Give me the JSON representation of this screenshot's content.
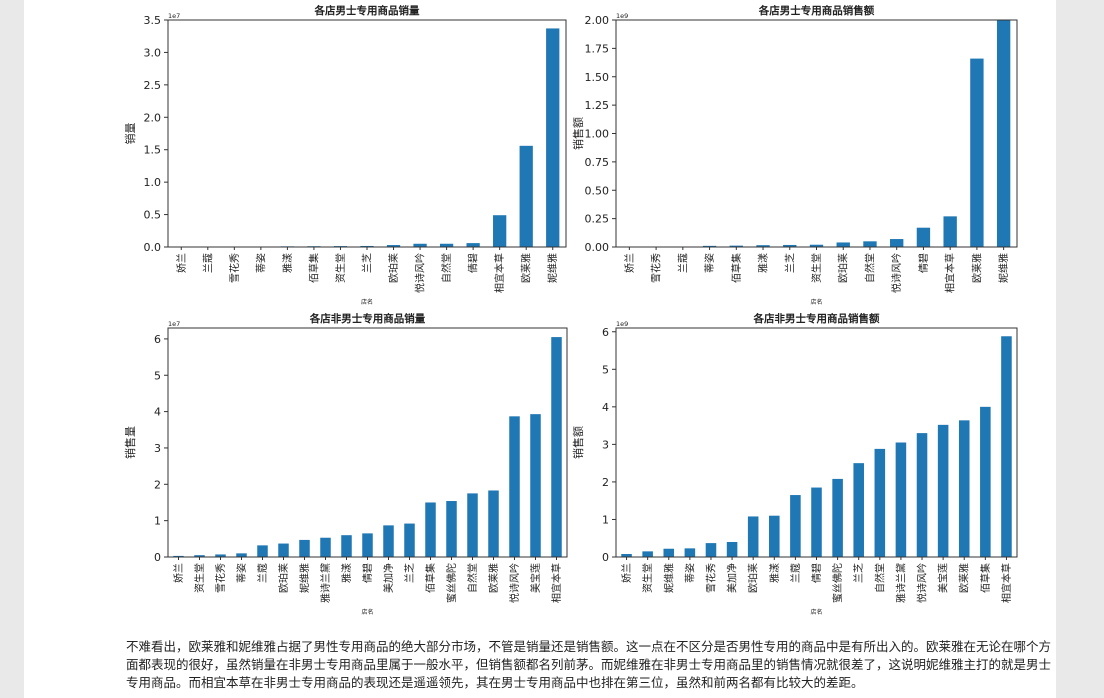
{
  "charts": [
    {
      "type": "bar",
      "title": "各店男士专用商品销量",
      "ylabel": "销量",
      "xlabel": "店名",
      "offset_text": "1e7",
      "ylim": [
        0,
        3.5
      ],
      "yticks": [
        "0.0",
        "0.5",
        "1.0",
        "1.5",
        "2.0",
        "2.5",
        "3.0",
        "3.5"
      ],
      "categories": [
        "娇兰",
        "兰蔻",
        "雪花秀",
        "蒂姿",
        "雅漾",
        "佰草集",
        "资生堂",
        "兰芝",
        "欧珀莱",
        "悦诗风吟",
        "自然堂",
        "倩碧",
        "相宜本草",
        "欧莱雅",
        "妮维雅"
      ],
      "values": [
        0.002,
        0.003,
        0.004,
        0.006,
        0.01,
        0.012,
        0.014,
        0.016,
        0.03,
        0.05,
        0.05,
        0.06,
        0.49,
        1.56,
        3.37
      ]
    },
    {
      "type": "bar",
      "title": "各店男士专用商品销售额",
      "ylabel": "销售额",
      "xlabel": "店名",
      "offset_text": "1e9",
      "ylim": [
        0,
        2.0
      ],
      "yticks": [
        "0.00",
        "0.25",
        "0.50",
        "0.75",
        "1.00",
        "1.25",
        "1.50",
        "1.75",
        "2.00"
      ],
      "categories": [
        "娇兰",
        "雪花秀",
        "兰蔻",
        "蒂姿",
        "佰草集",
        "雅漾",
        "兰芝",
        "资生堂",
        "欧珀莱",
        "自然堂",
        "悦诗风吟",
        "倩碧",
        "相宜本草",
        "欧莱雅",
        "妮维雅"
      ],
      "values": [
        0.002,
        0.003,
        0.004,
        0.01,
        0.012,
        0.016,
        0.018,
        0.02,
        0.04,
        0.05,
        0.07,
        0.17,
        0.27,
        1.66,
        2.0
      ]
    },
    {
      "type": "bar",
      "title": "各店非男士专用商品销量",
      "ylabel": "销售量",
      "xlabel": "店名",
      "offset_text": "1e7",
      "ylim": [
        0,
        6.3
      ],
      "yticks": [
        "0",
        "1",
        "2",
        "3",
        "4",
        "5",
        "6"
      ],
      "categories": [
        "娇兰",
        "资生堂",
        "雪花秀",
        "蒂姿",
        "兰蔻",
        "欧珀莱",
        "妮维雅",
        "雅诗兰黛",
        "雅漾",
        "倩碧",
        "美加净",
        "兰芝",
        "佰草集",
        "蜜丝佛陀",
        "自然堂",
        "欧莱雅",
        "悦诗风吟",
        "美宝莲",
        "相宜本草"
      ],
      "values": [
        0.03,
        0.05,
        0.07,
        0.1,
        0.32,
        0.37,
        0.47,
        0.53,
        0.6,
        0.65,
        0.87,
        0.92,
        1.5,
        1.54,
        1.75,
        1.83,
        3.87,
        3.93,
        6.05
      ]
    },
    {
      "type": "bar",
      "title": "各店非男士专用商品销售额",
      "ylabel": "销售额",
      "xlabel": "店名",
      "offset_text": "1e9",
      "ylim": [
        0,
        6.1
      ],
      "yticks": [
        "0",
        "1",
        "2",
        "3",
        "4",
        "5",
        "6"
      ],
      "categories": [
        "娇兰",
        "资生堂",
        "妮维雅",
        "蒂姿",
        "雪花秀",
        "美加净",
        "欧珀莱",
        "雅漾",
        "兰蔻",
        "倩碧",
        "蜜丝佛陀",
        "兰芝",
        "自然堂",
        "雅诗兰黛",
        "悦诗风吟",
        "美宝莲",
        "欧莱雅",
        "佰草集",
        "相宜本草"
      ],
      "values": [
        0.08,
        0.15,
        0.22,
        0.23,
        0.37,
        0.4,
        1.08,
        1.1,
        1.65,
        1.85,
        2.08,
        2.5,
        2.88,
        3.05,
        3.3,
        3.52,
        3.64,
        4.0,
        5.88
      ]
    }
  ],
  "paragraph": "不难看出，欧莱雅和妮维雅占据了男性专用商品的绝大部分市场，不管是销量还是销售额。这一点在不区分是否男性专用的商品中是有所出入的。欧莱雅在无论在哪个方面都表现的很好，虽然销量在非男士专用商品里属于一般水平，但销售额都名列前茅。而妮维雅在非男士专用商品里的销售情况就很差了，这说明妮维雅主打的就是男士专用商品。而相宜本草在非男士专用商品的表现还是遥遥领先，其在男士专用商品中也排在第三位，虽然和前两名都有比较大的差距。",
  "colors": {
    "bar": "#1f77b4",
    "background": "#ffffff",
    "side": "#e9e9e9"
  }
}
